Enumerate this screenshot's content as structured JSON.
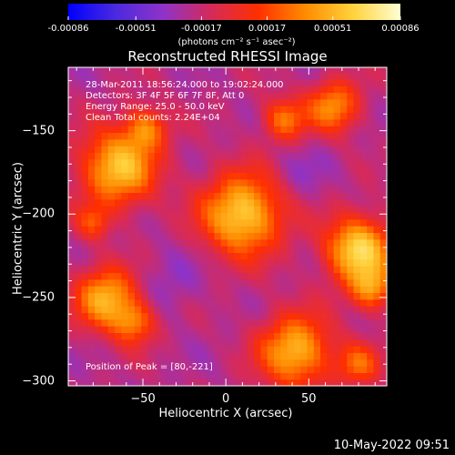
{
  "chart_data": {
    "type": "heatmap",
    "title": "Reconstructed RHESSI Image",
    "xlabel": "Heliocentric X (arcsec)",
    "ylabel": "Heliocentric Y (arcsec)",
    "xlim": [
      -95,
      97
    ],
    "ylim": [
      -303,
      -112
    ],
    "x_ticks": [
      -50,
      0,
      50
    ],
    "y_ticks": [
      -150,
      -200,
      -250,
      -300
    ],
    "colorbar": {
      "range": [
        -0.00086,
        0.00086
      ],
      "ticks": [
        "-0.00086",
        "-0.00051",
        "-0.00017",
        "0.00017",
        "0.00051",
        "0.00086"
      ],
      "colors": [
        "#0000ff",
        "#4b2adf",
        "#8e33c8",
        "#d52a5b",
        "#ff2f00",
        "#ff8c00",
        "#ffd23c",
        "#ffffd2"
      ],
      "units": "(photons cm⁻² s⁻¹ asec⁻²)"
    },
    "sources": [
      {
        "x": -65,
        "y": -172,
        "sigma": 16,
        "peak": 0.00078
      },
      {
        "x": -48,
        "y": -148,
        "sigma": 9,
        "peak": 0.0005
      },
      {
        "x": 10,
        "y": -200,
        "sigma": 17,
        "peak": 0.00084
      },
      {
        "x": 35,
        "y": -143,
        "sigma": 9,
        "peak": 0.00052
      },
      {
        "x": 65,
        "y": -135,
        "sigma": 11,
        "peak": 0.0006
      },
      {
        "x": 80,
        "y": -221,
        "sigma": 14,
        "peak": 0.00086
      },
      {
        "x": 88,
        "y": -245,
        "sigma": 9,
        "peak": 0.00055
      },
      {
        "x": -72,
        "y": -250,
        "sigma": 13,
        "peak": 0.00072
      },
      {
        "x": -55,
        "y": -265,
        "sigma": 9,
        "peak": 0.0005
      },
      {
        "x": 42,
        "y": -282,
        "sigma": 15,
        "peak": 0.00075
      },
      {
        "x": 80,
        "y": -290,
        "sigma": 9,
        "peak": 0.00045
      },
      {
        "x": -80,
        "y": -205,
        "sigma": 7,
        "peak": 0.00035
      }
    ]
  },
  "info": {
    "time": "28-Mar-2011 18:56:24.000 to 19:02:24.000",
    "detectors": "Detectors: 3F 4F 5F 6F 7F 8F, Att 0",
    "energy": "Energy Range: 25.0 - 50.0 keV",
    "clean": "Clean     Total counts: 2.24E+04",
    "peak": "Position of Peak = [80,-221]"
  },
  "stamp": "10-May-2022 09:51"
}
